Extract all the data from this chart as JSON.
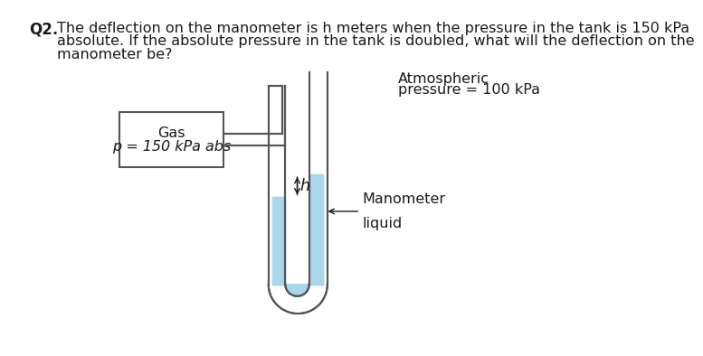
{
  "title_label": "Q2.",
  "question_text_line1": "The deflection on the manometer is h meters when the pressure in the tank is 150 kPa",
  "question_text_line2": "absolute. If the absolute pressure in the tank is doubled, what will the deflection on the",
  "question_text_line3": "manometer be?",
  "gas_label_line1": "Gas",
  "gas_label_line2": "p = 150 kPa abs",
  "atm_label_line1": "Atmospheric",
  "atm_label_line2": "pressure = 100 kPa",
  "manometer_label_line1": "Manometer",
  "manometer_label_line2": "liquid",
  "h_label": "h",
  "liquid_color": "#a8d8ea",
  "tube_edge_color": "#555555",
  "background_color": "#ffffff",
  "text_color": "#1a1a1a",
  "font_size": 11.5
}
